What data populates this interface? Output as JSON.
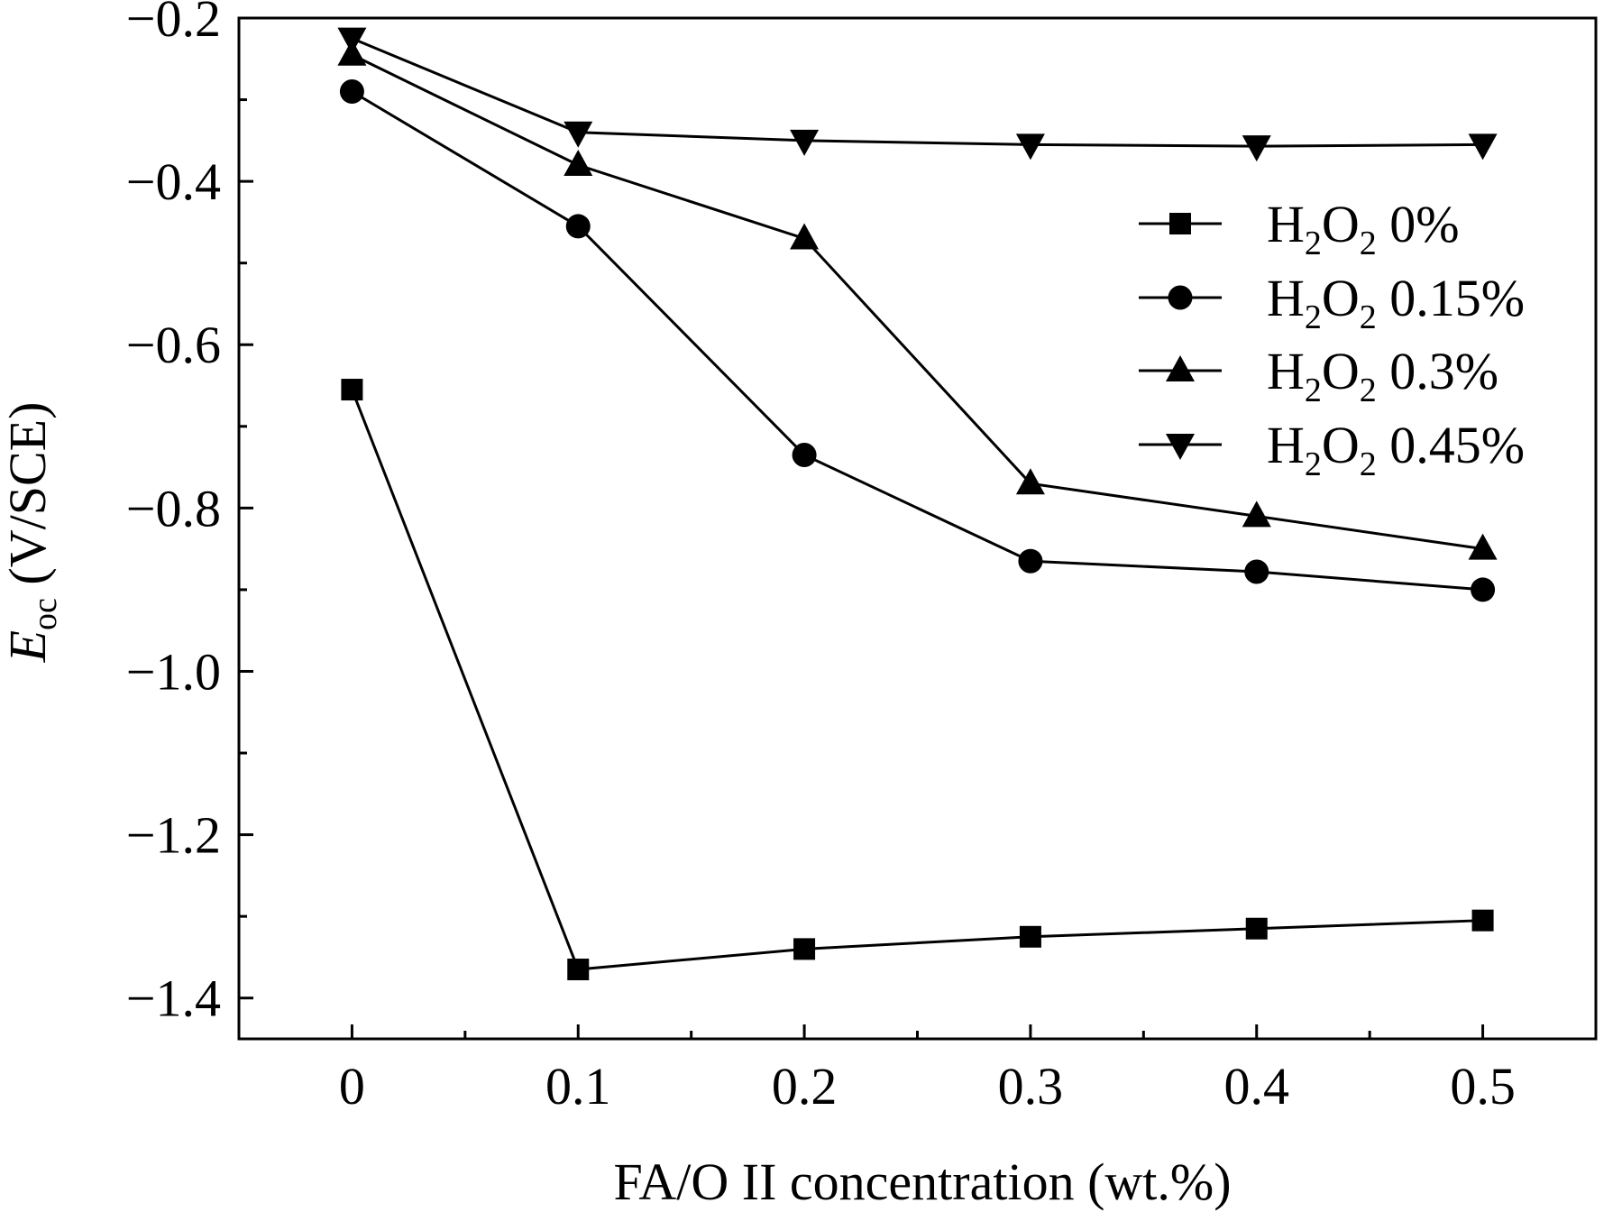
{
  "chart_data": {
    "type": "line",
    "xlabel": "FA/O II  concentration (wt.%)",
    "ylabel": {
      "symbol": "E",
      "subscript": "oc",
      "unit": " (V/SCE)"
    },
    "xlim": [
      -0.05,
      0.55
    ],
    "ylim": [
      -1.45,
      -0.2
    ],
    "x_ticks": [
      0,
      0.1,
      0.2,
      0.3,
      0.4,
      0.5
    ],
    "x_tick_labels": [
      "0",
      "0.1",
      "0.2",
      "0.3",
      "0.4",
      "0.5"
    ],
    "y_ticks": [
      -0.2,
      -0.4,
      -0.6,
      -0.8,
      -1.0,
      -1.2,
      -1.4
    ],
    "y_tick_labels": [
      "−0.2",
      "−0.4",
      "−0.6",
      "−0.8",
      "−1.0",
      "−1.2",
      "−1.4"
    ],
    "x": [
      0,
      0.1,
      0.2,
      0.3,
      0.4,
      0.5
    ],
    "legend_position": "upper-right",
    "grid": false,
    "series": [
      {
        "name": "H2O2 0%",
        "legend": {
          "base": "H",
          "sub1": "2",
          "mid": "O",
          "sub2": "2",
          "tail": " 0%"
        },
        "marker": "square",
        "values": [
          -0.655,
          -1.365,
          -1.34,
          -1.325,
          -1.315,
          -1.305
        ]
      },
      {
        "name": "H2O2 0.15%",
        "legend": {
          "base": "H",
          "sub1": "2",
          "mid": "O",
          "sub2": "2",
          "tail": " 0.15%"
        },
        "marker": "circle",
        "values": [
          -0.29,
          -0.455,
          -0.735,
          -0.865,
          -0.878,
          -0.9
        ]
      },
      {
        "name": "H2O2 0.3%",
        "legend": {
          "base": "H",
          "sub1": "2",
          "mid": "O",
          "sub2": "2",
          "tail": " 0.3%"
        },
        "marker": "triangle-up",
        "values": [
          -0.245,
          -0.38,
          -0.47,
          -0.77,
          -0.81,
          -0.85
        ]
      },
      {
        "name": "H2O2 0.45%",
        "legend": {
          "base": "H",
          "sub1": "2",
          "mid": "O",
          "sub2": "2",
          "tail": " 0.45%"
        },
        "marker": "triangle-down",
        "values": [
          -0.225,
          -0.34,
          -0.35,
          -0.355,
          -0.357,
          -0.355
        ]
      }
    ],
    "colors": {
      "line": "#000000",
      "marker": "#000000",
      "background": "#ffffff"
    }
  }
}
